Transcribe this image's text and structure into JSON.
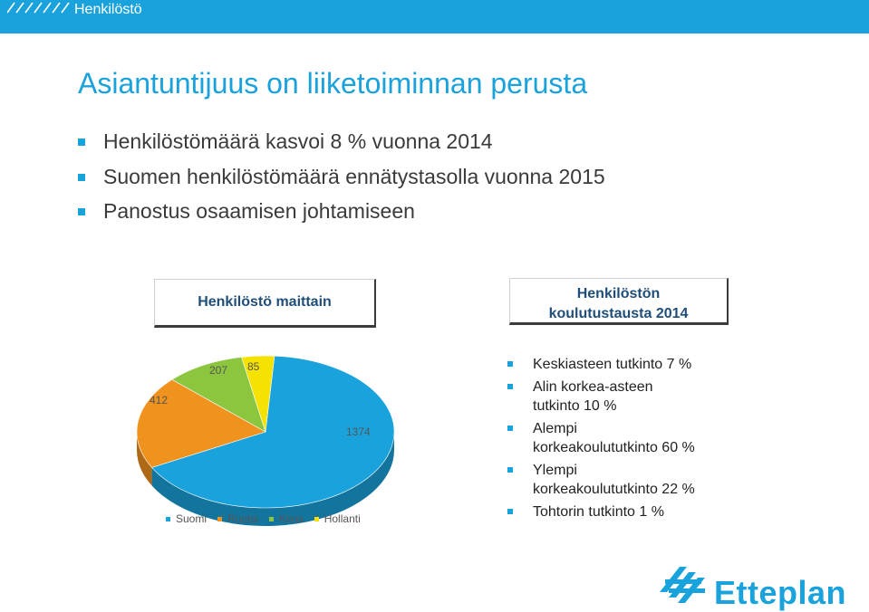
{
  "header": {
    "section_title": "Henkilöstö"
  },
  "title": "Asiantuntijuus on liiketoiminnan perusta",
  "bullets": [
    "Henkilöstömäärä kasvoi 8 % vuonna 2014",
    "Suomen henkilöstömäärä ennätystasolla vuonna 2015",
    "Panostus osaamisen johtamiseen"
  ],
  "cards": {
    "left": "Henkilöstö maittain",
    "right_line1": "Henkilöstön",
    "right_line2": "koulutustausta 2014"
  },
  "chart_data": {
    "type": "pie",
    "title": "",
    "categories": [
      "Suomi",
      "Ruotsi",
      "Kiina",
      "Hollanti"
    ],
    "values": [
      1374,
      412,
      207,
      85
    ],
    "colors": [
      "#1aa2dc",
      "#f0921e",
      "#8cc63f",
      "#f5e200"
    ],
    "legend_position": "bottom",
    "labels": {
      "Suomi": "1374",
      "Ruotsi": "412",
      "Kiina": "207",
      "Hollanti": "85"
    }
  },
  "education": [
    [
      "Keskiasteen tutkinto 7 %"
    ],
    [
      "Alin korkea-asteen",
      "tutkinto 10 %"
    ],
    [
      "Alempi",
      "korkeakoulututkinto 60 %"
    ],
    [
      "Ylempi",
      "korkeakoulututkinto 22 %"
    ],
    [
      "Tohtorin tutkinto 1 %"
    ]
  ],
  "logo": {
    "text": "Etteplan"
  },
  "colors": {
    "accent": "#1aa2dc"
  }
}
